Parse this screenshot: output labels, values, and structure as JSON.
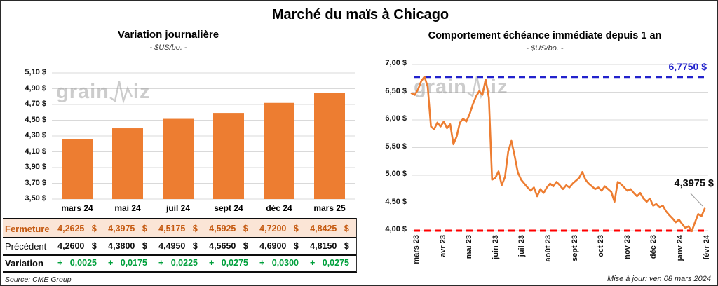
{
  "page": {
    "title": "Marché du maïs à Chicago",
    "source": "Source: CME Group",
    "updated": "Mise à jour: ven 08 mars 2024",
    "watermark": {
      "part1": "grain",
      "part2": "iz"
    }
  },
  "colors": {
    "orange": "#ED7D31",
    "blue": "#2222CC",
    "red": "#FF0000",
    "green": "#00A03C",
    "fermeture_text": "#C55A11",
    "fermeture_bg": "#FBE5D6",
    "grid": "#D9D9D9",
    "leader": "#A0A0A0"
  },
  "chart_data": [
    {
      "type": "bar",
      "title": "Variation journalière",
      "subtitle": "- $US/bo. -",
      "categories": [
        "mars 24",
        "mai 24",
        "juil 24",
        "sept 24",
        "déc 24",
        "mars 25"
      ],
      "values": [
        4.2625,
        4.3975,
        4.5175,
        4.5925,
        4.72,
        4.8425
      ],
      "ylim": [
        3.5,
        5.1
      ],
      "ytick_step": 0.2,
      "ytick_labels": [
        "5,10 $",
        "4,90 $",
        "4,70 $",
        "4,50 $",
        "4,30 $",
        "4,10 $",
        "3,90 $",
        "3,70 $",
        "3,50 $"
      ],
      "grid": true,
      "legend": "none"
    },
    {
      "type": "line",
      "title": "Comportement échéance immédiate depuis 1 an",
      "subtitle": "- $US/bo. -",
      "x_labels": [
        "mars 23",
        "avr 23",
        "mai 23",
        "juin 23",
        "juil 23",
        "août 23",
        "sept 23",
        "oct 23",
        "nov 23",
        "déc 23",
        "janv 24",
        "févr 24"
      ],
      "ylim": [
        4.0,
        7.0
      ],
      "ytick_labels": [
        "7,00 $",
        "6,50 $",
        "6,00 $",
        "5,50 $",
        "5,00 $",
        "4,50 $",
        "4,00 $"
      ],
      "grid": true,
      "legend": "none",
      "reference_lines": [
        {
          "value": 6.775,
          "label": "6,7750 $",
          "color_key": "blue",
          "style": "dashed"
        },
        {
          "value": 4.0,
          "label": "",
          "color_key": "red",
          "style": "dashed"
        }
      ],
      "annotation": {
        "label": "4,3975 $",
        "value": 4.3975
      },
      "values": [
        6.48,
        6.45,
        6.55,
        6.7,
        6.78,
        6.6,
        5.88,
        5.83,
        5.95,
        5.88,
        5.97,
        5.85,
        5.92,
        5.56,
        5.7,
        5.95,
        6.02,
        5.97,
        6.1,
        6.28,
        6.42,
        6.52,
        6.45,
        6.73,
        6.4,
        4.92,
        4.95,
        5.07,
        4.82,
        4.97,
        5.43,
        5.62,
        5.35,
        5.05,
        4.92,
        4.85,
        4.78,
        4.72,
        4.78,
        4.62,
        4.75,
        4.68,
        4.78,
        4.85,
        4.8,
        4.88,
        4.82,
        4.75,
        4.82,
        4.78,
        4.85,
        4.9,
        4.95,
        5.06,
        4.92,
        4.85,
        4.8,
        4.75,
        4.78,
        4.72,
        4.8,
        4.75,
        4.7,
        4.52,
        4.88,
        4.84,
        4.78,
        4.72,
        4.75,
        4.68,
        4.62,
        4.68,
        4.58,
        4.52,
        4.58,
        4.45,
        4.48,
        4.42,
        4.45,
        4.35,
        4.28,
        4.22,
        4.15,
        4.2,
        4.12,
        4.05,
        4.08,
        3.99,
        4.15,
        4.3,
        4.26,
        4.3975
      ]
    }
  ],
  "table": {
    "header": [
      "mars 24",
      "mai 24",
      "juil 24",
      "sept 24",
      "déc 24",
      "mars 25"
    ],
    "rows": [
      {
        "label": "Fermeture",
        "values": [
          "4,2625 $",
          "4,3975 $",
          "4,5175 $",
          "4,5925 $",
          "4,7200 $",
          "4,8425 $"
        ]
      },
      {
        "label": "Précédent",
        "values": [
          "4,2600 $",
          "4,3800 $",
          "4,4950 $",
          "4,5650 $",
          "4,6900 $",
          "4,8150 $"
        ]
      },
      {
        "label": "Variation",
        "values": [
          "+ 0,0025",
          "+ 0,0175",
          "+ 0,0225",
          "+ 0,0275",
          "+ 0,0300",
          "+ 0,0275"
        ]
      }
    ]
  }
}
